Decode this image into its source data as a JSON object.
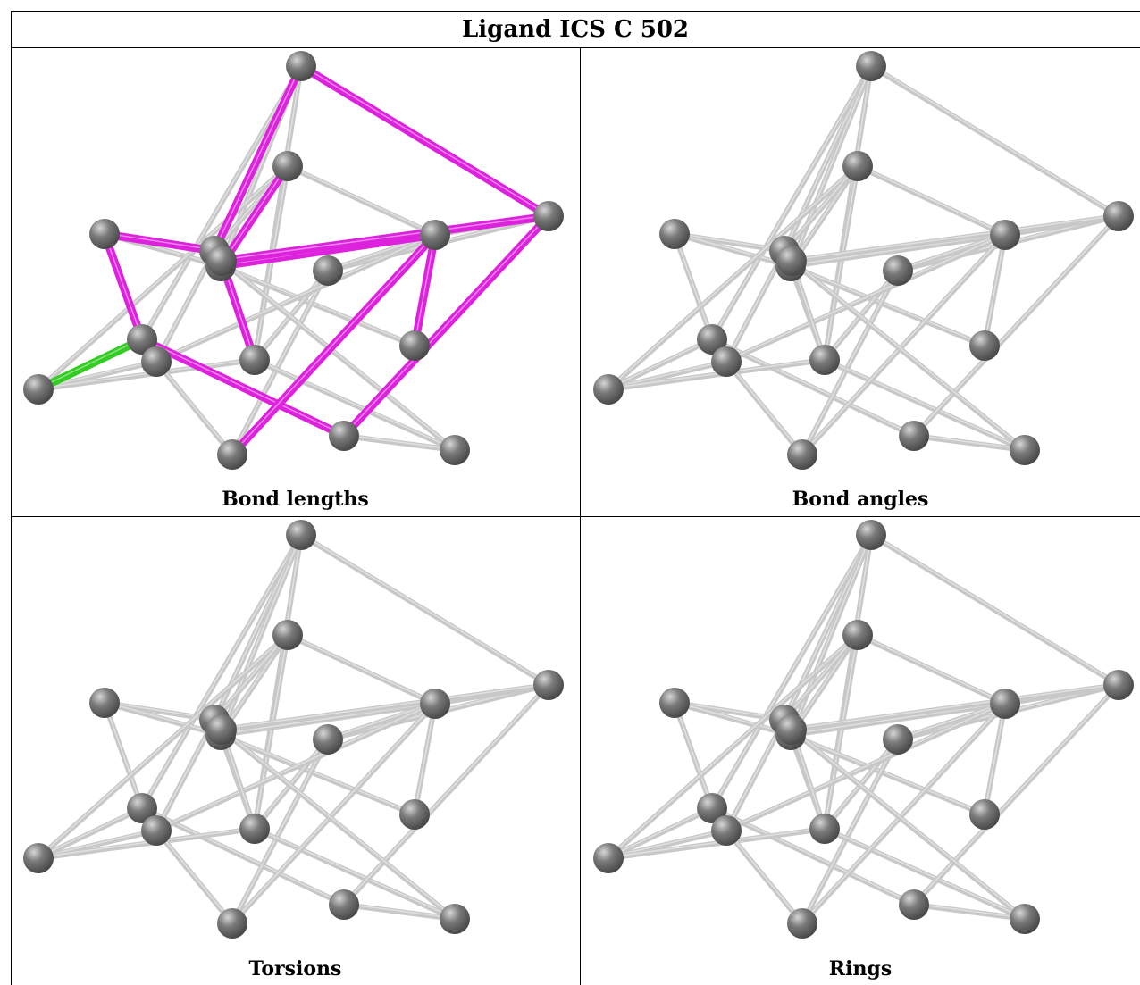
{
  "title": "Ligand ICS C 502",
  "panels": [
    {
      "caption": "Bond lengths",
      "highlight": true
    },
    {
      "caption": "Bond angles",
      "highlight": false
    },
    {
      "caption": "Torsions",
      "highlight": false
    },
    {
      "caption": "Rings",
      "highlight": false
    }
  ],
  "colors": {
    "bond_default": "#c8c8c8",
    "bond_magenta": "#dd22dd",
    "bond_green": "#33cc22",
    "atom": "#7a7a7a"
  },
  "molecule": {
    "atoms": [
      "a0",
      "a1",
      "a2",
      "a3",
      "a4",
      "a5",
      "a6",
      "a7",
      "a8",
      "a9",
      "a10",
      "a11",
      "a12",
      "a13",
      "a14",
      "a15",
      "a16"
    ],
    "bonds": [
      {
        "from": "a0",
        "to": "a1",
        "type": "magenta"
      },
      {
        "from": "a0",
        "to": "a14",
        "type": "magenta"
      },
      {
        "from": "a0",
        "to": "a5",
        "type": "green"
      },
      {
        "from": "a0",
        "to": "a8",
        "type": "default"
      },
      {
        "from": "a0",
        "to": "a3",
        "type": "default"
      },
      {
        "from": "a1",
        "to": "a2",
        "type": "magenta"
      },
      {
        "from": "a1",
        "to": "a6",
        "type": "default"
      },
      {
        "from": "a2",
        "to": "a3",
        "type": "magenta"
      },
      {
        "from": "a2",
        "to": "a8",
        "type": "default"
      },
      {
        "from": "a2",
        "to": "a16",
        "type": "default"
      },
      {
        "from": "a3",
        "to": "a12",
        "type": "magenta"
      },
      {
        "from": "a3",
        "to": "a6",
        "type": "default"
      },
      {
        "from": "a3",
        "to": "a9",
        "type": "default"
      },
      {
        "from": "a4",
        "to": "a6",
        "type": "magenta"
      },
      {
        "from": "a4",
        "to": "a9",
        "type": "default"
      },
      {
        "from": "a4",
        "to": "a10",
        "type": "default"
      },
      {
        "from": "a5",
        "to": "a8",
        "type": "default"
      },
      {
        "from": "a5",
        "to": "a9",
        "type": "default"
      },
      {
        "from": "a6",
        "to": "a11",
        "type": "default"
      },
      {
        "from": "a6",
        "to": "a10",
        "type": "magenta"
      },
      {
        "from": "a6",
        "to": "a9",
        "type": "default"
      },
      {
        "from": "a7",
        "to": "a9",
        "type": "default"
      },
      {
        "from": "a7",
        "to": "a12",
        "type": "default"
      },
      {
        "from": "a7",
        "to": "a10",
        "type": "default"
      },
      {
        "from": "a7",
        "to": "a13",
        "type": "default"
      },
      {
        "from": "a8",
        "to": "a13",
        "type": "default"
      },
      {
        "from": "a8",
        "to": "a10",
        "type": "default"
      },
      {
        "from": "a9",
        "to": "a16",
        "type": "magenta"
      },
      {
        "from": "a9",
        "to": "a15",
        "type": "default"
      },
      {
        "from": "a10",
        "to": "a13",
        "type": "magenta"
      },
      {
        "from": "a10",
        "to": "a12",
        "type": "default"
      },
      {
        "from": "a11",
        "to": "a10",
        "type": "magenta"
      },
      {
        "from": "a12",
        "to": "a16",
        "type": "magenta"
      },
      {
        "from": "a12",
        "to": "a14",
        "type": "magenta"
      },
      {
        "from": "a14",
        "to": "a15",
        "type": "default"
      },
      {
        "from": "a15",
        "to": "a16",
        "type": "default"
      },
      {
        "from": "a5",
        "to": "a4",
        "type": "default"
      },
      {
        "from": "a2",
        "to": "a4",
        "type": "default"
      }
    ]
  }
}
